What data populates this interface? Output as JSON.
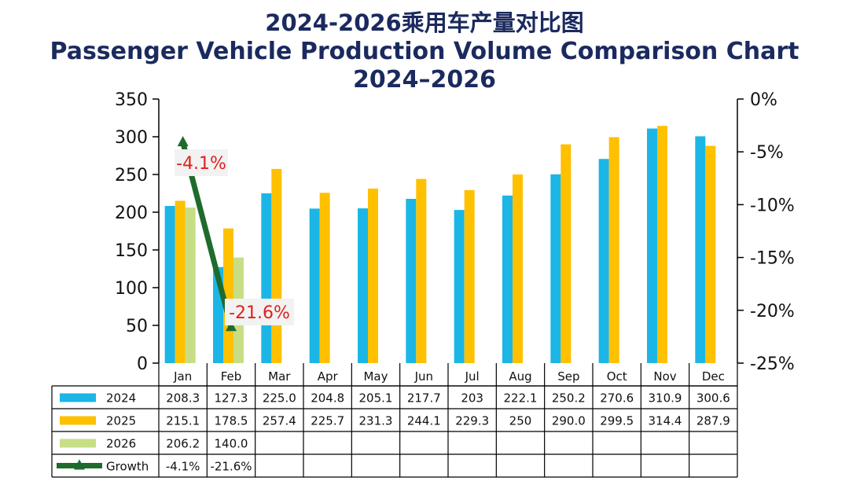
{
  "titles": {
    "line1": "2024-2026乘用车产量对比图",
    "line2": "Passenger Vehicle Production Volume Comparison Chart",
    "line3": "2024–2026"
  },
  "colors": {
    "s2024": "#1bb6e6",
    "s2025": "#ffc000",
    "s2026": "#c8de84",
    "growth": "#1f6b2c",
    "label_text": "#e0201c",
    "label_bg": "#f2f2f2"
  },
  "chart_data": {
    "type": "bar",
    "title": "Passenger Vehicle Production Volume Comparison Chart 2024–2026",
    "categories": [
      "Jan",
      "Feb",
      "Mar",
      "Apr",
      "May",
      "Jun",
      "Jul",
      "Aug",
      "Sep",
      "Oct",
      "Nov",
      "Dec"
    ],
    "y_ticks": [
      "0",
      "50",
      "100",
      "150",
      "200",
      "250",
      "300",
      "350"
    ],
    "ylim": [
      0,
      350
    ],
    "y2_ticks": [
      "0%",
      "-5%",
      "-10%",
      "-15%",
      "-20%",
      "-25%"
    ],
    "y2lim": [
      -25,
      0
    ],
    "series": [
      {
        "name": "2024",
        "values": [
          208.3,
          127.3,
          225.0,
          204.8,
          205.1,
          217.7,
          203,
          222.1,
          250.2,
          270.6,
          310.9,
          300.6
        ],
        "labels": [
          "208.3",
          "127.3",
          "225.0",
          "204.8",
          "205.1",
          "217.7",
          "203",
          "222.1",
          "250.2",
          "270.6",
          "310.9",
          "300.6"
        ]
      },
      {
        "name": "2025",
        "values": [
          215.1,
          178.5,
          257.4,
          225.7,
          231.3,
          244.1,
          229.3,
          250,
          290.0,
          299.5,
          314.4,
          287.9
        ],
        "labels": [
          "215.1",
          "178.5",
          "257.4",
          "225.7",
          "231.3",
          "244.1",
          "229.3",
          "250",
          "290.0",
          "299.5",
          "314.4",
          "287.9"
        ]
      },
      {
        "name": "2026",
        "values": [
          206.2,
          140.0,
          null,
          null,
          null,
          null,
          null,
          null,
          null,
          null,
          null,
          null
        ],
        "labels": [
          "206.2",
          "140.0",
          "",
          "",
          "",
          "",
          "",
          "",
          "",
          "",
          "",
          ""
        ]
      }
    ],
    "growth": {
      "name": "Growth",
      "values": [
        -4.1,
        -21.6,
        null,
        null,
        null,
        null,
        null,
        null,
        null,
        null,
        null,
        null
      ],
      "labels": [
        "-4.1%",
        "-21.6%",
        "",
        "",
        "",
        "",
        "",
        "",
        "",
        "",
        "",
        ""
      ]
    }
  }
}
